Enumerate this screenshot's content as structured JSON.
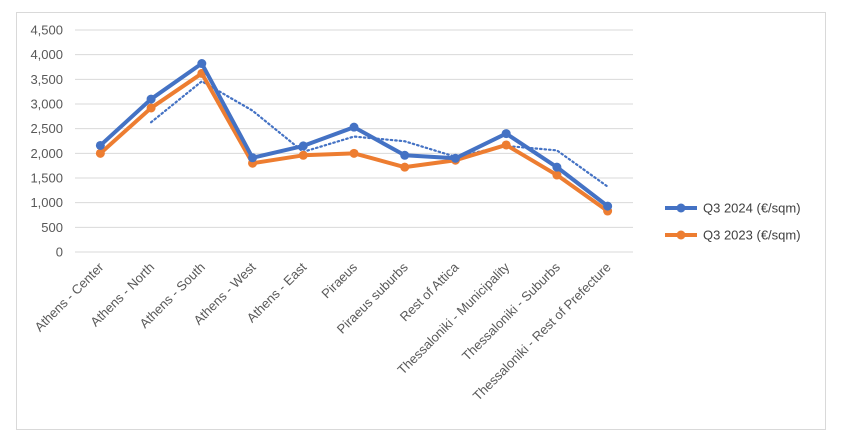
{
  "chart_data": {
    "type": "line",
    "title": "",
    "xlabel": "",
    "ylabel": "",
    "categories": [
      "Athens - Center",
      "Athens - North",
      "Athens - South",
      "Athens - West",
      "Athens - East",
      "Piraeus",
      "Piraeus suburbs",
      "Rest of Attica",
      "Thessaloniki - Municipality",
      "Thessaloniki - Suburbs",
      "Thessaloniki - Rest of Prefecture"
    ],
    "series": [
      {
        "name": "Q3 2024 (€/sqm)",
        "color": "#4472c4",
        "values": [
          2160,
          3100,
          3820,
          1910,
          2150,
          2530,
          1960,
          1900,
          2400,
          1720,
          930
        ]
      },
      {
        "name": "Q3 2023 (€/sqm)",
        "color": "#ed7d31",
        "values": [
          2000,
          2920,
          3620,
          1800,
          1960,
          2000,
          1720,
          1860,
          2170,
          1560,
          830
        ]
      }
    ],
    "trendline": {
      "style": "dotted",
      "color": "#4472c4",
      "period": 2,
      "values": [
        null,
        2630,
        3460,
        2865,
        2030,
        2340,
        2245,
        1930,
        2150,
        2060,
        1325
      ]
    },
    "ylim": [
      0,
      4500
    ],
    "yticks": [
      "0",
      "500",
      "1,000",
      "1,500",
      "2,000",
      "2,500",
      "3,000",
      "3,500",
      "4,000",
      "4,500"
    ],
    "ytick_values": [
      0,
      500,
      1000,
      1500,
      2000,
      2500,
      3000,
      3500,
      4000,
      4500
    ],
    "grid": true,
    "legend_position": "right"
  }
}
